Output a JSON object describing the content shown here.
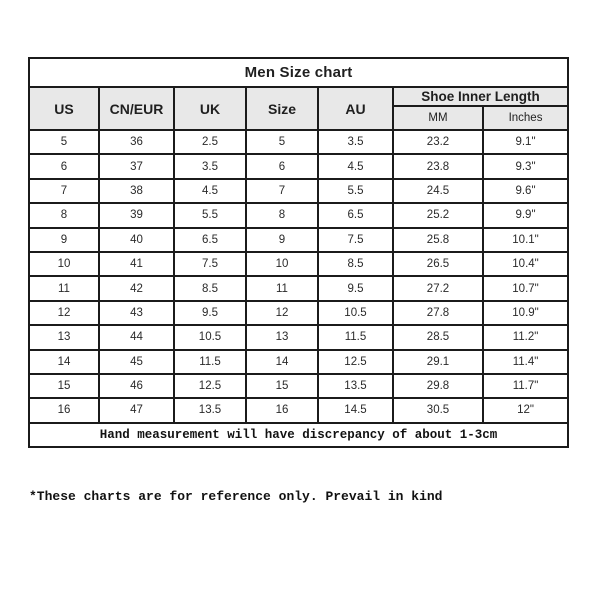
{
  "table": {
    "title": "Men Size chart",
    "columns": [
      "US",
      "CN/EUR",
      "UK",
      "Size",
      "AU"
    ],
    "shoe_inner_length": {
      "label": "Shoe Inner Length",
      "sub_columns": [
        "MM",
        "Inches"
      ]
    },
    "rows": [
      [
        "5",
        "36",
        "2.5",
        "5",
        "3.5",
        "23.2",
        "9.1\""
      ],
      [
        "6",
        "37",
        "3.5",
        "6",
        "4.5",
        "23.8",
        "9.3\""
      ],
      [
        "7",
        "38",
        "4.5",
        "7",
        "5.5",
        "24.5",
        "9.6\""
      ],
      [
        "8",
        "39",
        "5.5",
        "8",
        "6.5",
        "25.2",
        "9.9\""
      ],
      [
        "9",
        "40",
        "6.5",
        "9",
        "7.5",
        "25.8",
        "10.1\""
      ],
      [
        "10",
        "41",
        "7.5",
        "10",
        "8.5",
        "26.5",
        "10.4\""
      ],
      [
        "11",
        "42",
        "8.5",
        "11",
        "9.5",
        "27.2",
        "10.7\""
      ],
      [
        "12",
        "43",
        "9.5",
        "12",
        "10.5",
        "27.8",
        "10.9\""
      ],
      [
        "13",
        "44",
        "10.5",
        "13",
        "11.5",
        "28.5",
        "11.2\""
      ],
      [
        "14",
        "45",
        "11.5",
        "14",
        "12.5",
        "29.1",
        "11.4\""
      ],
      [
        "15",
        "46",
        "12.5",
        "15",
        "13.5",
        "29.8",
        "11.7\""
      ],
      [
        "16",
        "47",
        "13.5",
        "16",
        "14.5",
        "30.5",
        "12\""
      ]
    ],
    "footer_note": "Hand measurement will have discrepancy of about 1-3cm"
  },
  "disclaimer": "*These charts are for reference only. Prevail in kind",
  "colors": {
    "header_bg": "#e8e8e8",
    "border": "#1b1b1b",
    "text": "#1f1f1f"
  }
}
